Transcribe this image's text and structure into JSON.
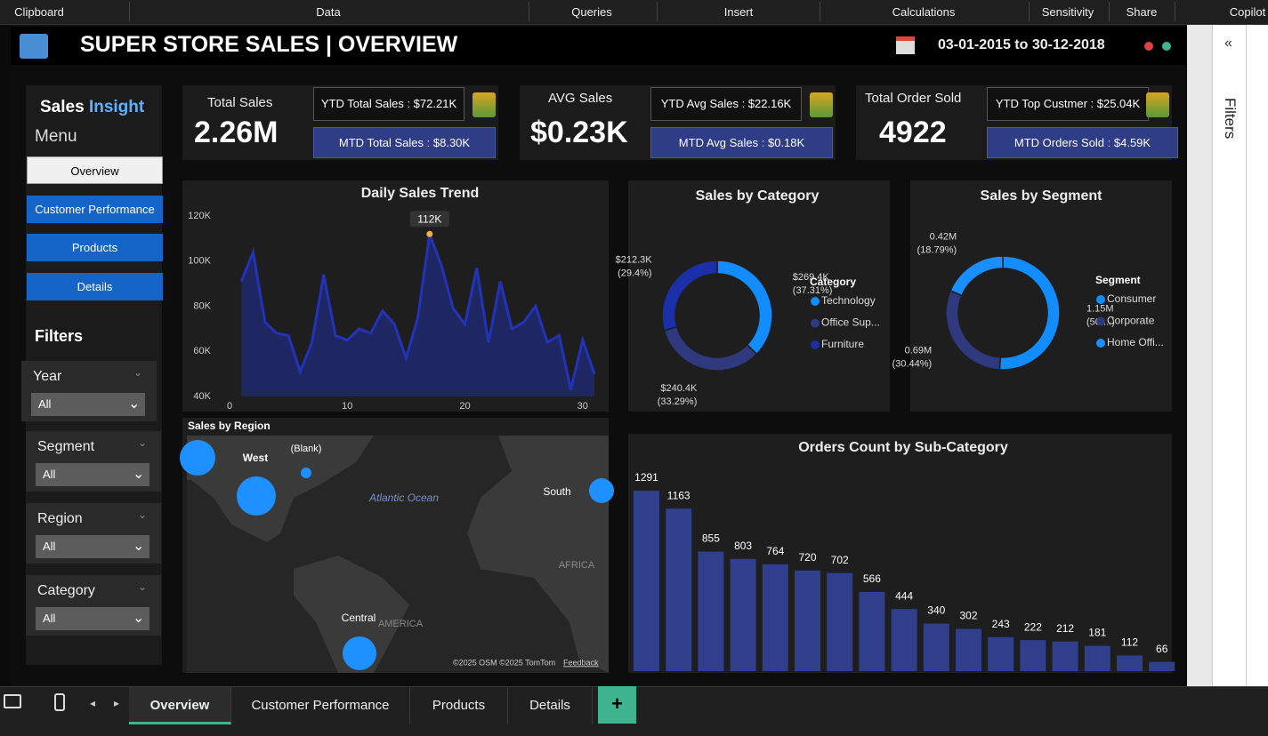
{
  "ribbon": [
    "Clipboard",
    "Data",
    "Queries",
    "Insert",
    "Calculations",
    "Sensitivity",
    "Share",
    "Copilot"
  ],
  "header": {
    "title": "SUPER STORE SALES | OVERVIEW",
    "date_range": "03-01-2015 to 30-12-2018"
  },
  "kpis": [
    {
      "label": "Total Sales",
      "value": "2.26M",
      "ytd": "YTD Total Sales : $72.21K",
      "mtd": "MTD Total Sales : $8.30K"
    },
    {
      "label": "AVG Sales",
      "value": "$0.23K",
      "ytd": "YTD Avg Sales : $22.16K",
      "mtd": "MTD Avg Sales : $0.18K"
    },
    {
      "label": "Total Order Sold",
      "value": "4922",
      "ytd": "YTD Top Custmer : $25.04K",
      "mtd": "MTD Orders Sold : $4.59K"
    }
  ],
  "sidebar": {
    "title_1": "Sales",
    "title_2": "Insight",
    "menu": "Menu",
    "nav": [
      "Overview",
      "Customer Performance",
      "Products",
      "Details"
    ],
    "filters_title": "Filters",
    "slicers": [
      {
        "label": "Year",
        "value": "All"
      },
      {
        "label": "Segment",
        "value": "All"
      },
      {
        "label": "Region",
        "value": "All"
      },
      {
        "label": "Category",
        "value": "All"
      }
    ]
  },
  "map": {
    "title": "Sales by Region",
    "labels": [
      "West",
      "(Blank)",
      "South",
      "Central"
    ],
    "ocean": "Atlantic Ocean",
    "continent_labels": [
      "AFRICA",
      "AMERICA"
    ],
    "credits": "©2025 OSM  ©2025 TomTom",
    "feedback": "Feedback"
  },
  "chart_data": [
    {
      "type": "line",
      "title": "Daily Sales Trend",
      "area": true,
      "color": "#2233b8",
      "x": [
        1,
        2,
        3,
        4,
        5,
        6,
        7,
        8,
        9,
        10,
        11,
        12,
        13,
        14,
        15,
        16,
        17,
        18,
        19,
        20,
        21,
        22,
        23,
        24,
        25,
        26,
        27,
        28,
        29,
        30,
        31
      ],
      "values": [
        91000,
        104000,
        73000,
        68000,
        67000,
        51000,
        64000,
        94000,
        67000,
        65000,
        70000,
        68000,
        78000,
        72000,
        57000,
        75000,
        112000,
        98000,
        79000,
        72000,
        97000,
        64000,
        91000,
        70000,
        73000,
        80000,
        64000,
        67000,
        43000,
        65000,
        50000
      ],
      "value_labels": [
        null,
        null,
        null,
        null,
        null,
        null,
        null,
        null,
        null,
        null,
        null,
        null,
        null,
        null,
        null,
        null,
        "112K",
        null,
        null,
        null,
        null,
        null,
        null,
        null,
        null,
        null,
        null,
        null,
        null,
        null,
        null
      ],
      "xlim": [
        0,
        31
      ],
      "xticks": [
        0,
        10,
        20,
        30
      ],
      "ylim": [
        40000,
        120000
      ],
      "yticks": [
        {
          "value": 40000,
          "label": "40K"
        },
        {
          "value": 60000,
          "label": "60K"
        },
        {
          "value": 80000,
          "label": "80K"
        },
        {
          "value": 100000,
          "label": "100K"
        },
        {
          "value": 120000,
          "label": "120K"
        }
      ]
    },
    {
      "type": "pie",
      "title": "Sales by Category",
      "donut": true,
      "legend_title": "Category",
      "legend": "right",
      "categories": [
        "Technology",
        "Office Sup...",
        "Furniture"
      ],
      "values": [
        269400,
        240400,
        212300
      ],
      "value_labels": [
        "$269.4K",
        "$240.4K",
        "$212.3K"
      ],
      "percent_labels": [
        "(37.31%)",
        "(33.29%)",
        "(29.4%)"
      ],
      "colors": [
        "#118dff",
        "#2f3a7e",
        "#1a2fa8"
      ]
    },
    {
      "type": "pie",
      "title": "Sales by Segment",
      "donut": true,
      "legend_title": "Segment",
      "legend": "right",
      "categories": [
        "Consumer",
        "Corporate",
        "Home Offi..."
      ],
      "values": [
        1150000,
        690000,
        420000
      ],
      "value_labels": [
        "1.15M",
        "0.69M",
        "0.42M"
      ],
      "percent_labels": [
        "(50....)",
        "(30.44%)",
        "(18.79%)"
      ],
      "colors": [
        "#118dff",
        "#2f3a7e",
        "#1a8fff"
      ]
    },
    {
      "type": "bar",
      "title": "Orders Count by Sub-Category",
      "color": "#303f8c",
      "categories": [
        null,
        null,
        null,
        null,
        null,
        null,
        null,
        null,
        null,
        null,
        null,
        null,
        null,
        null,
        null,
        null,
        null
      ],
      "values": [
        1291,
        1163,
        855,
        803,
        764,
        720,
        702,
        566,
        444,
        340,
        302,
        243,
        222,
        212,
        181,
        112,
        66
      ]
    }
  ],
  "filters_pane": {
    "title": "Filters"
  },
  "tabs": [
    "Overview",
    "Customer Performance",
    "Products",
    "Details"
  ]
}
